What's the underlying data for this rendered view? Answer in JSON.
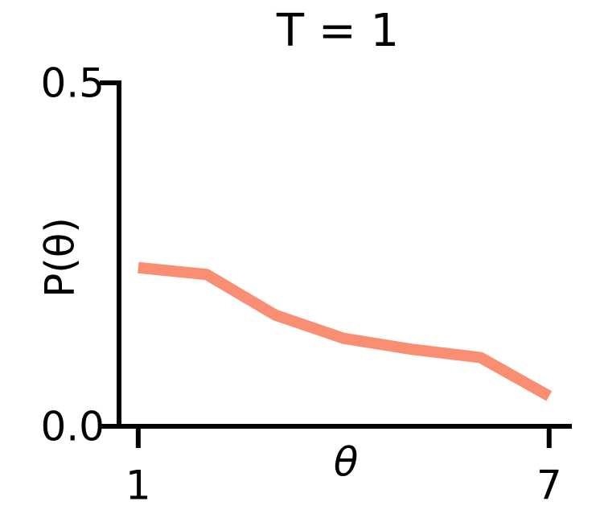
{
  "chart_data": {
    "type": "line",
    "title": "T = 1",
    "xlabel": "θ",
    "ylabel": "P(θ)",
    "x": [
      1,
      2,
      3,
      4,
      5,
      6,
      7
    ],
    "series": [
      {
        "color": "#fa8e72",
        "values": [
          0.231,
          0.221,
          0.162,
          0.128,
          0.112,
          0.1,
          0.044
        ]
      }
    ],
    "xlim": [
      0.72,
      7.32
    ],
    "xticks": [
      1,
      7
    ],
    "ylim": [
      0,
      0.5
    ],
    "yticks": [
      {
        "value": 0,
        "label": "0.0"
      },
      {
        "value": 0.5,
        "label": "0.5"
      }
    ]
  }
}
